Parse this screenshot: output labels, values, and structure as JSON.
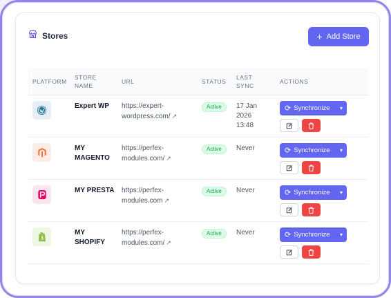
{
  "header": {
    "title": "Stores",
    "add_label": "Add Store"
  },
  "table": {
    "columns": {
      "platform": "PLATFORM",
      "store_name_1": "STORE",
      "store_name_2": "NAME",
      "url": "URL",
      "status": "STATUS",
      "last_sync_1": "LAST",
      "last_sync_2": "SYNC",
      "actions": "ACTIONS"
    },
    "rows": [
      {
        "platform": "wordpress-icon",
        "name_1": "Expert WP",
        "name_2": "",
        "url_1": "https://expert-",
        "url_2": "wordpress.com/",
        "status": "Active",
        "sync_1": "17 Jan",
        "sync_2": "2026",
        "sync_3": "13:48",
        "sync_button": "Synchronize"
      },
      {
        "platform": "magento-icon",
        "name_1": "MY",
        "name_2": "MAGENTO",
        "url_1": "https://perfex-",
        "url_2": "modules.com/",
        "status": "Active",
        "sync_1": "Never",
        "sync_2": "",
        "sync_3": "",
        "sync_button": "Synchronize"
      },
      {
        "platform": "prestashop-icon",
        "name_1": "MY PRESTA",
        "name_2": "",
        "url_1": "https://perfex-",
        "url_2": "modules.com",
        "status": "Active",
        "sync_1": "Never",
        "sync_2": "",
        "sync_3": "",
        "sync_button": "Synchronize"
      },
      {
        "platform": "shopify-icon",
        "name_1": "MY",
        "name_2": "SHOPIFY",
        "url_1": "https://perfex-",
        "url_2": "modules.com/",
        "status": "Active",
        "sync_1": "Never",
        "sync_2": "",
        "sync_3": "",
        "sync_button": "Synchronize"
      }
    ]
  },
  "colors": {
    "accent": "#6366f1",
    "danger": "#ef4444",
    "success_bg": "#dcfce7",
    "success_text": "#16a34a"
  }
}
